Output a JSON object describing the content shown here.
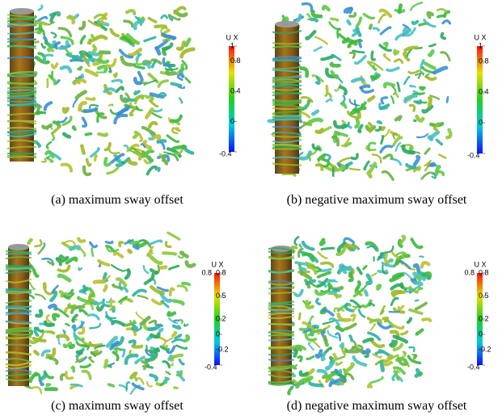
{
  "panels": [
    {
      "caption": "(a)  maximum sway offset",
      "colorbar": {
        "title": "U X",
        "range": [
          -0.4,
          1
        ],
        "ticks": [
          1,
          0.8,
          0.4,
          0,
          -0.4
        ]
      }
    },
    {
      "caption": "(b)  negative maximum sway offset",
      "colorbar": {
        "title": "U X",
        "range": [
          -0.4,
          1
        ],
        "ticks": [
          1,
          0.8,
          0.4,
          0,
          -0.4
        ]
      }
    },
    {
      "caption": "(c)  maximum sway offset",
      "colorbar": {
        "title": "U X",
        "corner_label": "0.8",
        "range": [
          -0.4,
          0.8
        ],
        "ticks": [
          0.8,
          0.5,
          0.2,
          0,
          -0.2,
          -0.4
        ]
      }
    },
    {
      "caption": "(d)  negative maximum sway offset",
      "colorbar": {
        "title": "U X",
        "corner_label": "0.8",
        "range": [
          -0.4,
          0.8
        ],
        "ticks": [
          0.8,
          0.5,
          0.2,
          0,
          -0.2,
          -0.4
        ]
      }
    }
  ]
}
